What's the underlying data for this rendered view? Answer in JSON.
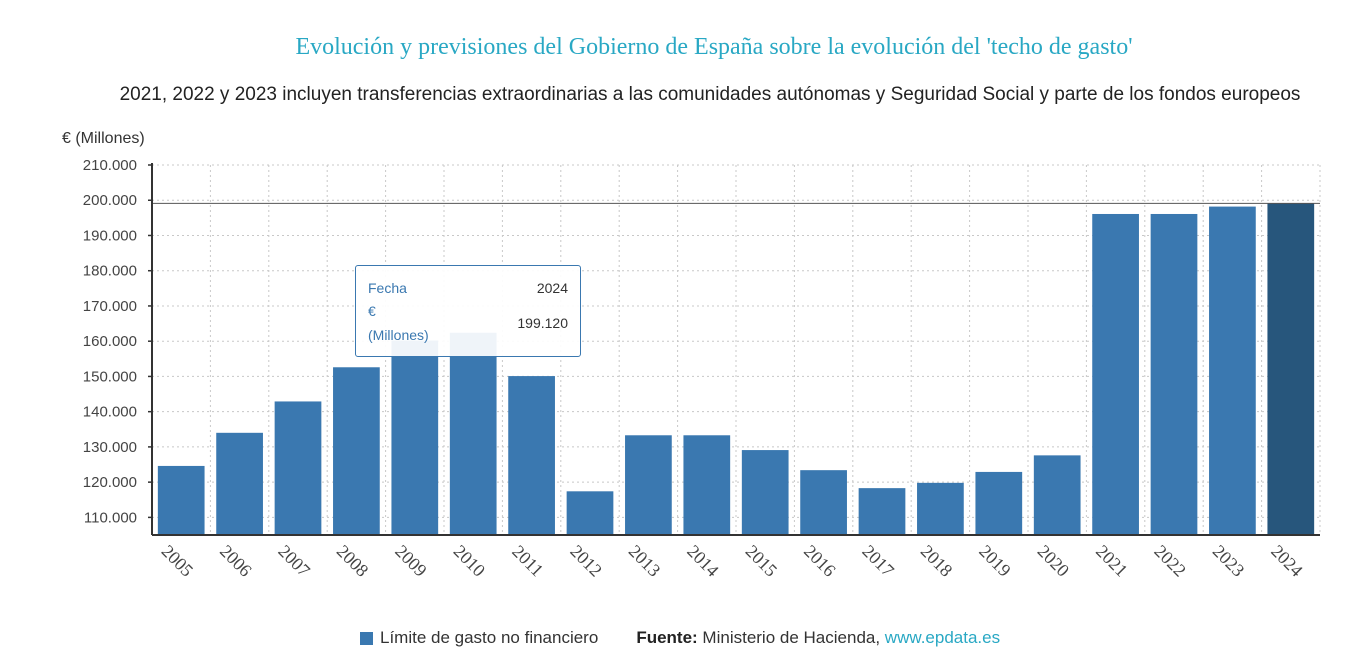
{
  "chart_data": {
    "type": "bar",
    "title": "Evolución y previsiones del Gobierno de España sobre la evolución del 'techo de gasto'",
    "subtitle": "2021, 2022 y 2023 incluyen transferencias extraordinarias a las comunidades autónomas y Seguridad Social y parte de los fondos europeos",
    "ylabel": "€ (Millones)",
    "xlabel": "",
    "ylim": [
      105000,
      210000
    ],
    "yticks": [
      110000,
      120000,
      130000,
      140000,
      150000,
      160000,
      170000,
      180000,
      190000,
      200000,
      210000
    ],
    "ytick_labels": [
      "110.000",
      "120.000",
      "130.000",
      "140.000",
      "150.000",
      "160.000",
      "170.000",
      "180.000",
      "190.000",
      "200.000",
      "210.000"
    ],
    "categories": [
      "2005",
      "2006",
      "2007",
      "2008",
      "2009",
      "2010",
      "2011",
      "2012",
      "2013",
      "2014",
      "2015",
      "2016",
      "2017",
      "2018",
      "2019",
      "2020",
      "2021",
      "2022",
      "2023",
      "2024"
    ],
    "series": [
      {
        "name": "Límite de gasto no financiero",
        "values": [
          124600,
          134000,
          142900,
          152600,
          160200,
          162400,
          150100,
          117400,
          133300,
          133300,
          129100,
          123400,
          118300,
          119800,
          122900,
          127600,
          196100,
          196100,
          198200,
          199120
        ]
      }
    ],
    "grid": true,
    "highlighted_category": "2024",
    "reference_line": 199120,
    "colors": {
      "bar": "#3a78b0",
      "bar_highlight": "#27567c",
      "axis": "#333333",
      "grid": "#c8c8c8"
    }
  },
  "tooltip": {
    "fecha_label": "Fecha",
    "fecha_value": "2024",
    "value_label_line1": "€",
    "value_label_line2": "(Millones)",
    "value": "199.120"
  },
  "legend": {
    "label": "Límite de gasto no financiero"
  },
  "source": {
    "label": "Fuente:",
    "text": " Ministerio de Hacienda, ",
    "link": "www.epdata.es"
  }
}
